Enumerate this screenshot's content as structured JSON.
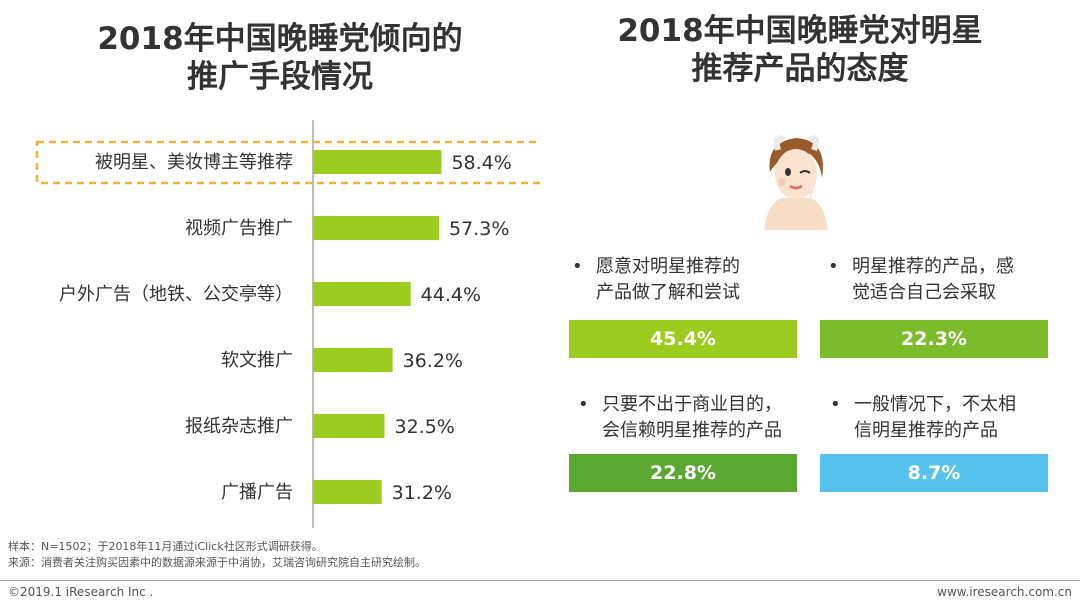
{
  "left_title": [
    "2018年中国晚睡党倾向的",
    "推广手段情况"
  ],
  "right_title": [
    "2018年中国晚睡党对明星",
    "推荐产品的态度"
  ],
  "chart_data": {
    "type": "bar",
    "orientation": "horizontal",
    "title": "2018年中国晚睡党倾向的推广手段情况",
    "categories": [
      "被明星、美妆博主等推荐",
      "视频广告推广",
      "户外广告（地铁、公交亭等）",
      "软文推广",
      "报纸杂志推广",
      "广播广告"
    ],
    "values": [
      58.4,
      57.3,
      44.4,
      36.2,
      32.5,
      31.2
    ],
    "labels": [
      "58.4%",
      "57.3%",
      "44.4%",
      "36.2%",
      "32.5%",
      "31.2%"
    ],
    "highlight_index": 0,
    "unit": "%"
  },
  "attitudes": [
    {
      "lines": [
        "愿意对明星推荐的",
        "产品做了解和尝试"
      ],
      "value": 45.4,
      "label": "45.4%",
      "color": "#9ccc1f"
    },
    {
      "lines": [
        "明星推荐的产品，感",
        "觉适合自己会采取"
      ],
      "value": 22.3,
      "label": "22.3%",
      "color": "#7cbc2a"
    },
    {
      "lines": [
        "只要不出于商业目的，",
        "会信赖明星推荐的产品"
      ],
      "value": 22.8,
      "label": "22.8%",
      "color": "#5aa832"
    },
    {
      "lines": [
        "一般情况下，不太相",
        "信明星推荐的产品"
      ],
      "value": 8.7,
      "label": "8.7%",
      "color": "#55c3ee"
    }
  ],
  "bullet": "•",
  "footnote": {
    "sample": "样本：N=1502；于2018年11月通过iClick社区形式调研获得。",
    "source": "来源：消费者关注购买因素中的数据源来源于中消协，艾瑞咨询研究院自主研究绘制。"
  },
  "footer": {
    "copyright": "©2019.1 iResearch Inc .",
    "url": "www.iresearch.com.cn"
  }
}
